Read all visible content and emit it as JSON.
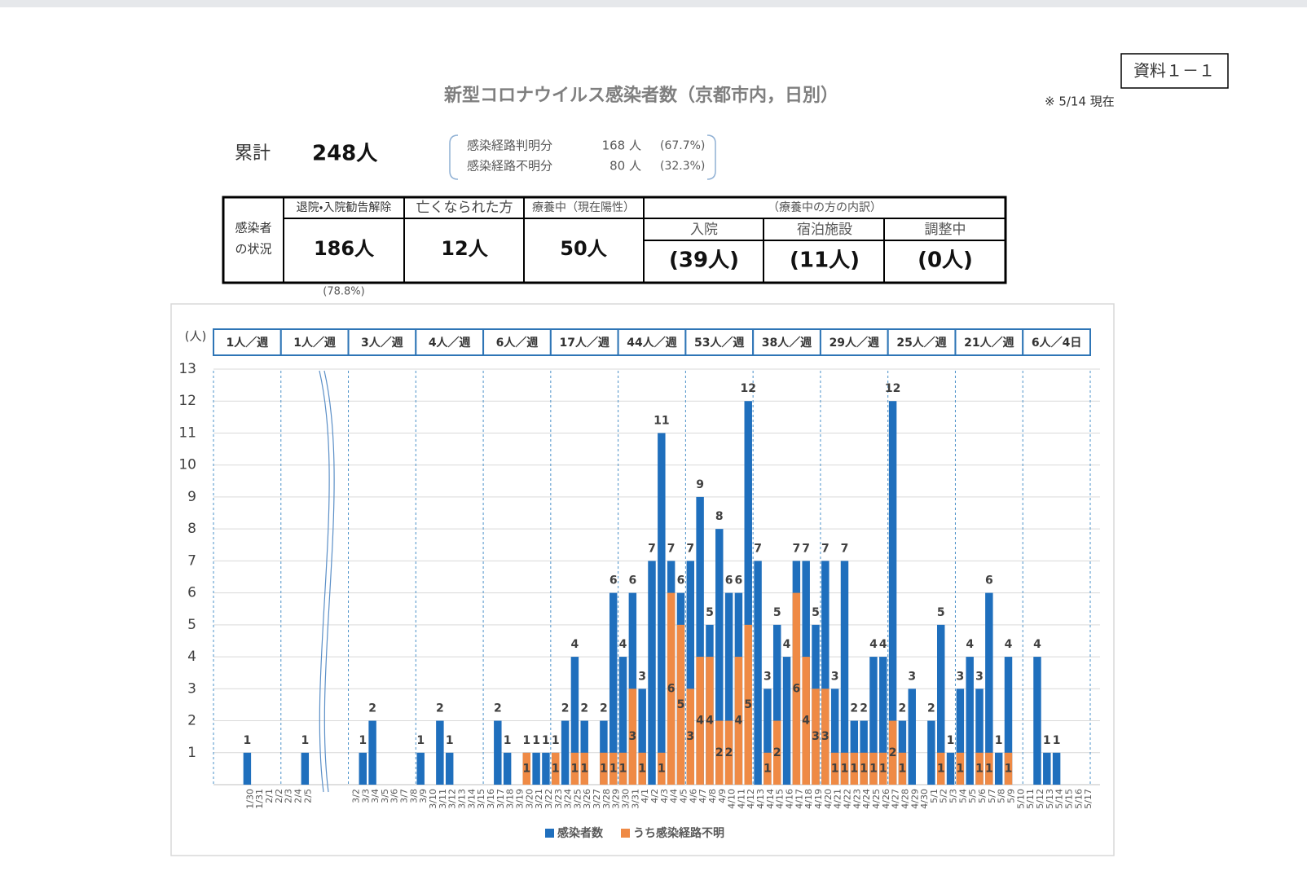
{
  "header": {
    "title": "新型コロナウイルス感染者数（京都市内，日別）",
    "doc_id": "資料１－１",
    "as_of": "※ 5/14 現在"
  },
  "summary": {
    "total_label": "累計",
    "total": "248人",
    "breakdown": [
      {
        "label": "感染経路判明分",
        "count": "168 人",
        "share": "(67.7%)"
      },
      {
        "label": "感染経路不明分",
        "count": "80 人",
        "share": "(32.3%)"
      }
    ]
  },
  "table": {
    "row_header": [
      "感染者",
      "の状況"
    ],
    "columns": [
      {
        "header": "退院・入院勧告解除",
        "value": "186人",
        "note": "(78.8%)"
      },
      {
        "header": "亡くなられた方",
        "value": "12人"
      },
      {
        "header": "療養中（現在陽性）",
        "value": "50人"
      }
    ],
    "breakdown_header": "（療養中の方の内訳）",
    "breakdown": [
      {
        "header": "入院",
        "value": "(39人)"
      },
      {
        "header": "宿泊施設",
        "value": "(11人)"
      },
      {
        "header": "調整中",
        "value": "(0人)"
      }
    ]
  },
  "chart_data": {
    "type": "bar",
    "y_label": "(人)",
    "week_labels": [
      "1人／週",
      "1人／週",
      "3人／週",
      "4人／週",
      "6人／週",
      "17人／週",
      "44人／週",
      "53人／週",
      "38人／週",
      "29人／週",
      "25人／週",
      "21人／週",
      "6人／4日"
    ],
    "categories": [
      null,
      null,
      null,
      "1/30",
      "1/31",
      "2/1",
      "2/2",
      "2/3",
      "2/4",
      "2/5",
      null,
      null,
      null,
      null,
      "3/2",
      "3/3",
      "3/4",
      "3/5",
      "3/6",
      "3/7",
      "3/8",
      "3/9",
      "3/10",
      "3/11",
      "3/12",
      "3/13",
      "3/14",
      "3/15",
      "3/16",
      "3/17",
      "3/18",
      "3/19",
      "3/20",
      "3/21",
      "3/22",
      "3/23",
      "3/24",
      "3/25",
      "3/26",
      "3/27",
      "3/28",
      "3/29",
      "3/30",
      "3/31",
      "4/1",
      "4/2",
      "4/3",
      "4/4",
      "4/5",
      "4/6",
      "4/7",
      "4/8",
      "4/9",
      "4/10",
      "4/11",
      "4/12",
      "4/13",
      "4/14",
      "4/15",
      "4/16",
      "4/17",
      "4/18",
      "4/19",
      "4/20",
      "4/21",
      "4/22",
      "4/23",
      "4/24",
      "4/25",
      "4/26",
      "4/27",
      "4/28",
      "4/29",
      "4/30",
      "5/1",
      "5/2",
      "5/3",
      "5/4",
      "5/5",
      "5/6",
      "5/7",
      "5/8",
      "5/9",
      "5/10",
      "5/11",
      "5/12",
      "5/13",
      "5/14",
      "5/15",
      "5/16",
      "5/17"
    ],
    "series": [
      {
        "name": "感染者数",
        "color": "#1f6fbd",
        "values": [
          null,
          null,
          null,
          1,
          0,
          0,
          0,
          0,
          0,
          1,
          null,
          null,
          null,
          null,
          0,
          1,
          2,
          0,
          0,
          0,
          0,
          1,
          0,
          2,
          1,
          0,
          0,
          0,
          0,
          2,
          1,
          0,
          1,
          1,
          1,
          1,
          2,
          4,
          2,
          0,
          2,
          6,
          4,
          6,
          3,
          7,
          11,
          7,
          6,
          7,
          9,
          5,
          8,
          6,
          6,
          12,
          7,
          3,
          5,
          4,
          7,
          7,
          5,
          7,
          3,
          7,
          2,
          2,
          4,
          4,
          12,
          2,
          3,
          0,
          2,
          5,
          1,
          3,
          4,
          3,
          6,
          1,
          4,
          0,
          0,
          4,
          1,
          1,
          null,
          null,
          null
        ]
      },
      {
        "name": "うち感染経路不明",
        "color": "#ef8a45",
        "values": [
          null,
          null,
          null,
          0,
          0,
          0,
          0,
          0,
          0,
          0,
          null,
          null,
          null,
          null,
          0,
          0,
          0,
          0,
          0,
          0,
          0,
          0,
          0,
          0,
          0,
          0,
          0,
          0,
          0,
          0,
          0,
          0,
          1,
          0,
          0,
          1,
          0,
          1,
          1,
          0,
          1,
          1,
          1,
          3,
          1,
          0,
          1,
          6,
          5,
          3,
          4,
          4,
          2,
          2,
          4,
          5,
          0,
          1,
          2,
          0,
          6,
          4,
          3,
          3,
          1,
          1,
          1,
          1,
          1,
          1,
          2,
          1,
          0,
          0,
          0,
          1,
          0,
          1,
          0,
          1,
          1,
          0,
          1,
          0,
          0,
          0,
          0,
          0,
          null,
          null,
          null
        ]
      }
    ],
    "ylim": [
      0,
      13
    ],
    "yticks": [
      1,
      2,
      3,
      4,
      5,
      6,
      7,
      8,
      9,
      10,
      11,
      12,
      13
    ],
    "grid": true,
    "legend": "bottom"
  }
}
